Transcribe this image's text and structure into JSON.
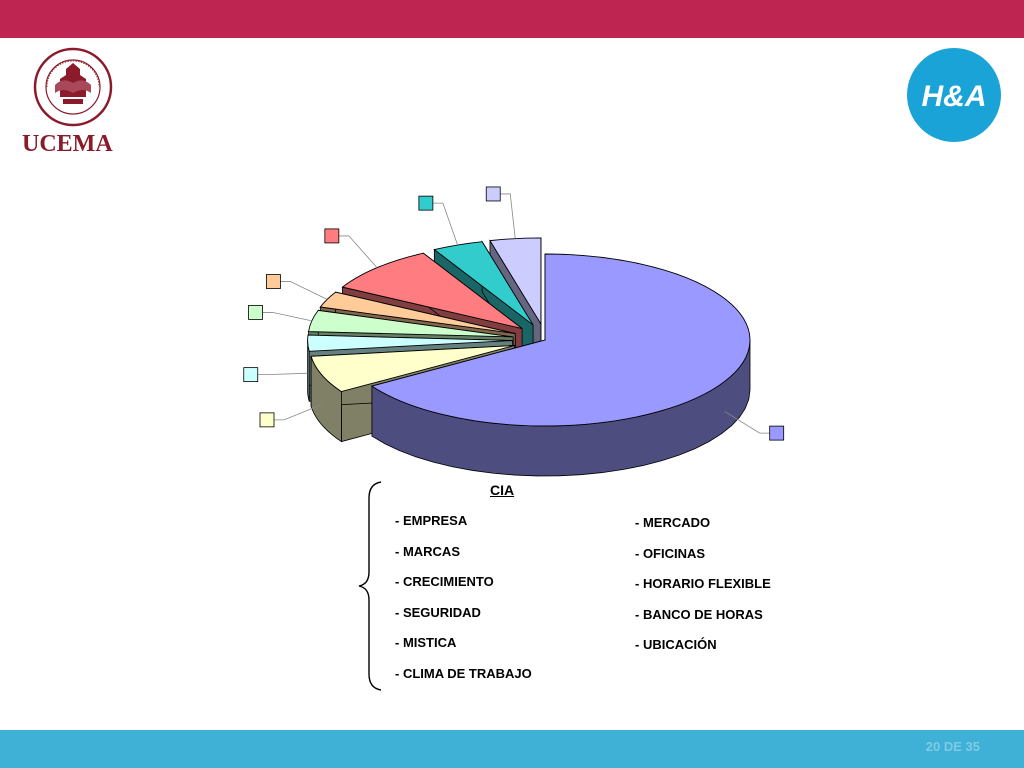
{
  "header": {
    "bar_color": "#be2550"
  },
  "logo_left": {
    "name": "UCEMA",
    "seal_text": "UNIVERSIDAD DEL CEMA",
    "seal_year": "MCMLXXVIII"
  },
  "logo_right": {
    "text": "H&A",
    "color": "#1aa3d6"
  },
  "chart_data": {
    "type": "pie",
    "style": "3d-exploded",
    "title": "",
    "legend": "none",
    "labels": "small colored squares linked by leader lines, no text",
    "slices": [
      {
        "value": 66,
        "color": "#9999ff"
      },
      {
        "value": 7,
        "color": "#ffffcc"
      },
      {
        "value": 3,
        "color": "#ccffff"
      },
      {
        "value": 4,
        "color": "#ccffcc"
      },
      {
        "value": 3,
        "color": "#ffcc99"
      },
      {
        "value": 9,
        "color": "#ff7c80"
      },
      {
        "value": 4,
        "color": "#33cccc"
      },
      {
        "value": 4,
        "color": "#ccccff"
      }
    ]
  },
  "list_title": "CIA",
  "list_left": [
    "- EMPRESA",
    "- MARCAS",
    "- CRECIMIENTO",
    "- SEGURIDAD",
    "- MISTICA",
    "- CLIMA DE TRABAJO"
  ],
  "list_right": [
    "- MERCADO",
    "- OFICINAS",
    "- HORARIO  FLEXIBLE",
    "- BANCO DE HORAS",
    "- UBICACIÓN"
  ],
  "footer": {
    "page": "20 DE 35",
    "bar_color": "#3fb1d6"
  }
}
